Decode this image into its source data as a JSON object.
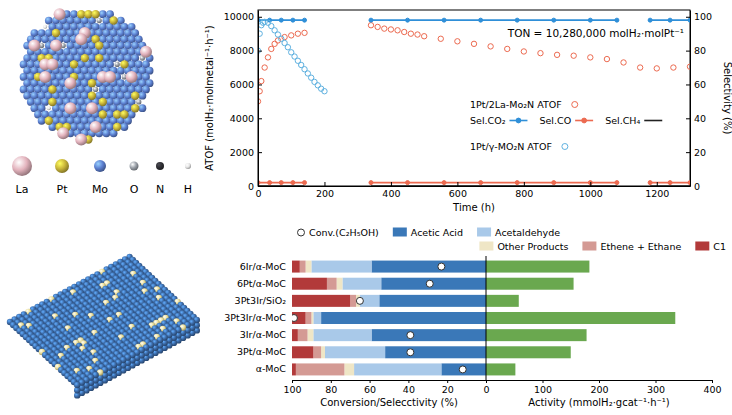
{
  "figure": {
    "element_legend": {
      "labels": [
        "La",
        "Pt",
        "Mo",
        "O",
        "N",
        "H"
      ],
      "colors": [
        "#e3b3bd",
        "#c9b53a",
        "#5c7fd0",
        "#9aa0a8",
        "#2e2e33",
        "#e6e6e6"
      ]
    }
  },
  "chart_data": [
    {
      "type": "line",
      "x_label": "Time (h)",
      "y_label": "ATOF (molH₂·molmetal⁻¹·h⁻¹)",
      "y2_label": "Selectivity (%)",
      "annotation": "TON = 10,280,000 molH₂·molPt⁻¹",
      "xlim": [
        0,
        1300
      ],
      "xticks": [
        0,
        200,
        400,
        600,
        800,
        1000,
        1200
      ],
      "ylim": [
        0,
        10400
      ],
      "yticks": [
        0,
        2000,
        4000,
        6000,
        8000,
        10000
      ],
      "y2lim": [
        0,
        104
      ],
      "y2ticks": [
        0,
        20,
        40,
        60,
        80,
        100
      ],
      "legend": "center-right",
      "series": [
        {
          "name": "1Pt/2La-Mo₂N ATOF",
          "color": "#ec6a50",
          "marker": "open-circle",
          "line_style": "none",
          "x": [
            0,
            5,
            10,
            20,
            30,
            40,
            50,
            60,
            80,
            100,
            120,
            140,
            340,
            360,
            380,
            400,
            420,
            440,
            460,
            480,
            500,
            550,
            600,
            650,
            700,
            750,
            800,
            850,
            900,
            950,
            1000,
            1050,
            1100,
            1150,
            1200,
            1250,
            1300
          ],
          "values": [
            5000,
            5600,
            6200,
            7000,
            7600,
            8100,
            8400,
            8600,
            8800,
            8900,
            9000,
            9050,
            9500,
            9400,
            9300,
            9250,
            9200,
            9100,
            9000,
            8950,
            8850,
            8700,
            8550,
            8400,
            8250,
            8100,
            7950,
            7850,
            7750,
            7700,
            7600,
            7500,
            7300,
            7000,
            6950,
            7000,
            7050
          ]
        },
        {
          "name": "Sel.CO₂",
          "color": "#2f8fd8",
          "axis": "y2",
          "marker": "circle",
          "line_style": "solid",
          "x": [
            0,
            35,
            70,
            105,
            140,
            240,
            340,
            450,
            560,
            670,
            780,
            890,
            1000,
            1080,
            1130,
            1180,
            1240,
            1300
          ],
          "values": [
            98,
            98,
            98,
            98,
            98,
            null,
            98,
            98,
            98,
            98,
            98,
            98,
            98,
            98,
            null,
            98,
            98,
            98
          ]
        },
        {
          "name": "Sel.CO",
          "color": "#ec6a50",
          "axis": "y2",
          "marker": "circle",
          "line_style": "solid",
          "x": [
            0,
            35,
            70,
            105,
            140,
            240,
            340,
            450,
            560,
            670,
            780,
            890,
            1000,
            1080,
            1130,
            1180,
            1240,
            1300
          ],
          "values": [
            2,
            2,
            2,
            2,
            2,
            null,
            2,
            2,
            2,
            2,
            2,
            2,
            2,
            2,
            null,
            2,
            2,
            2
          ]
        },
        {
          "name": "Sel.CH₄",
          "color": "#222222",
          "axis": "y2",
          "marker": "none",
          "line_style": "solid",
          "x": [
            0,
            35,
            70,
            105,
            140,
            240,
            340,
            450,
            560,
            670,
            780,
            890,
            1000,
            1080,
            1130,
            1180,
            1240,
            1300
          ],
          "values": [
            0,
            0,
            0,
            0,
            0,
            null,
            0,
            0,
            0,
            0,
            0,
            0,
            0,
            0,
            null,
            0,
            0,
            0
          ]
        },
        {
          "name": "1Pt/γ-MO₂N ATOF",
          "color": "#5fb1e0",
          "marker": "open-circle",
          "line_style": "none",
          "x": [
            0,
            5,
            10,
            15,
            20,
            30,
            40,
            50,
            60,
            70,
            80,
            90,
            100,
            110,
            120,
            130,
            140,
            150,
            160,
            170,
            180,
            190,
            200
          ],
          "values": [
            8000,
            9000,
            9500,
            9650,
            9700,
            9650,
            9450,
            9200,
            8950,
            8700,
            8450,
            8200,
            7900,
            7650,
            7400,
            7150,
            6900,
            6650,
            6400,
            6150,
            5950,
            5750,
            5600
          ]
        }
      ]
    },
    {
      "type": "bar",
      "orientation": "horizontal",
      "stacked": true,
      "x_label": "Conversion/Selecctivity (%)",
      "legend": "top",
      "categories": [
        "6Ir/α-MoC",
        "6Pt/α-MoC",
        "3Pt3Ir/SiO₂",
        "3Pt3Ir/α-MoC",
        "3Ir/α-MoC",
        "3Pt/α-MoC",
        "α-MoC"
      ],
      "xlim": [
        100,
        0
      ],
      "xticks": [
        100,
        80,
        60,
        40,
        20
      ],
      "series": [
        {
          "name": "Conv.(C₂H₅OH)",
          "type": "scatter",
          "marker": "open-circle",
          "color": "#ffffff",
          "values": [
            23,
            29,
            65,
            99,
            39,
            39,
            12
          ]
        },
        {
          "name": "Acetic Acid",
          "color": "#3a78b8",
          "values": [
            59,
            54,
            55,
            85,
            59,
            52,
            23
          ]
        },
        {
          "name": "Acetaldehyde",
          "color": "#a9c9e9",
          "values": [
            31,
            20,
            10,
            4,
            30,
            31,
            45
          ]
        },
        {
          "name": "Other Products",
          "color": "#efe6c6",
          "values": [
            3,
            3,
            2,
            1,
            3,
            2,
            5
          ]
        },
        {
          "name": "Ethene + Ethane",
          "color": "#d49a94",
          "values": [
            3,
            5,
            3,
            3,
            5,
            4,
            25
          ]
        },
        {
          "name": "C1",
          "color": "#b23a3a",
          "values": [
            4,
            18,
            30,
            7,
            3,
            11,
            2
          ]
        }
      ]
    },
    {
      "type": "bar",
      "orientation": "horizontal",
      "x_label": "Activity (mmolH₂·gcat⁻¹·h⁻¹)",
      "xlim": [
        0,
        400
      ],
      "xticks": [
        0,
        100,
        200,
        300,
        400
      ],
      "color": "#6aa84f",
      "values": [
        183,
        155,
        58,
        335,
        178,
        150,
        52
      ]
    }
  ]
}
